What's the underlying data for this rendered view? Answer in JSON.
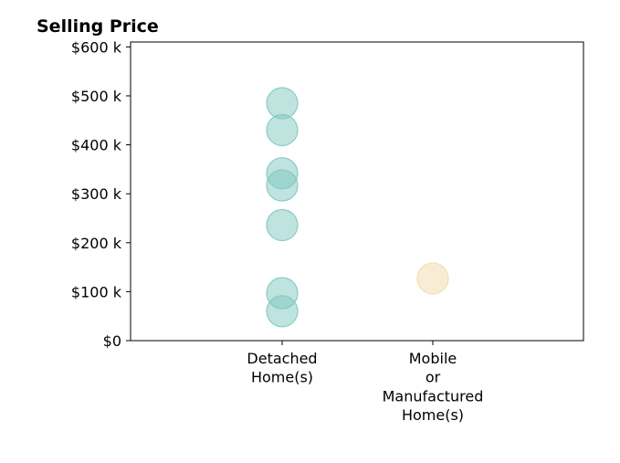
{
  "chart_data": {
    "type": "scatter",
    "title": "Selling Price",
    "xlabel": "",
    "ylabel": "",
    "categories": [
      [
        "Detached",
        "Home(s)"
      ],
      [
        "Mobile",
        "or",
        "Manufactured",
        "Home(s)"
      ]
    ],
    "ylim": [
      0,
      610000
    ],
    "y_ticks": [
      {
        "value": 0,
        "label": "$0"
      },
      {
        "value": 100000,
        "label": "$100 k"
      },
      {
        "value": 200000,
        "label": "$200 k"
      },
      {
        "value": 300000,
        "label": "$300 k"
      },
      {
        "value": 400000,
        "label": "$400 k"
      },
      {
        "value": 500000,
        "label": "$500 k"
      },
      {
        "value": 600000,
        "label": "$600 k"
      }
    ],
    "grid": false,
    "series": [
      {
        "category": 0,
        "color": "#7fc8c0",
        "values": [
          485000,
          430000,
          342000,
          317000,
          236000,
          97000,
          60000
        ]
      },
      {
        "category": 1,
        "color": "#f2dcaa",
        "values": [
          127000
        ]
      }
    ]
  }
}
